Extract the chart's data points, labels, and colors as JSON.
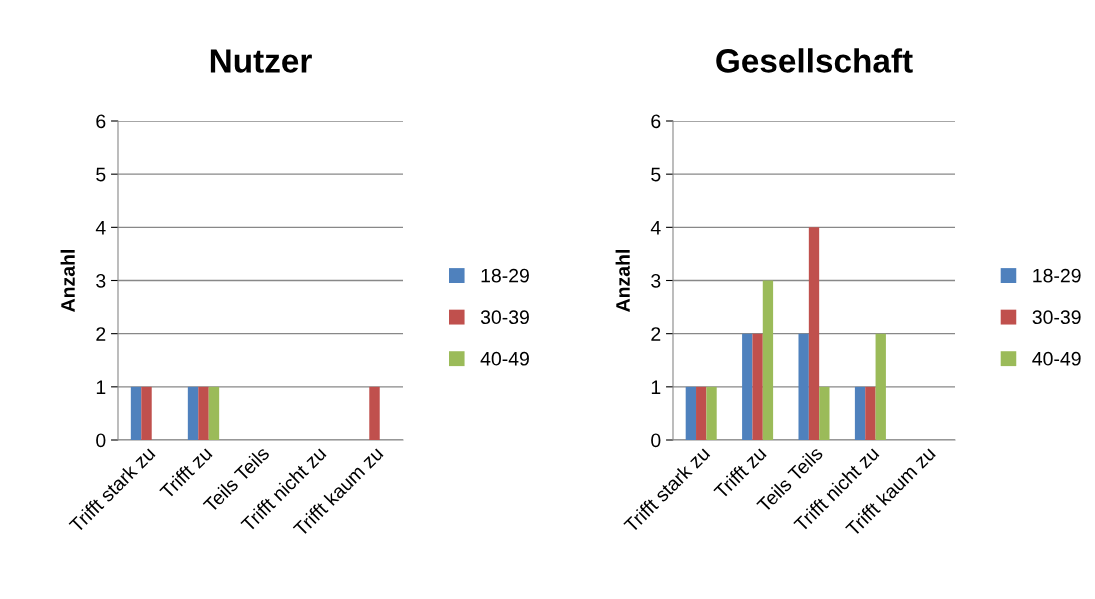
{
  "chart_data": [
    {
      "type": "bar",
      "title": "Nutzer",
      "ylabel": "Anzahl",
      "categories": [
        "Trifft stark zu",
        "Trifft zu",
        "Teils Teils",
        "Trifft nicht zu",
        "Trifft kaum zu"
      ],
      "ylim": [
        0,
        6
      ],
      "yticks": [
        0,
        1,
        2,
        3,
        4,
        5,
        6
      ],
      "grid": "y",
      "legend": "right",
      "series": [
        {
          "name": "18-29",
          "color": "#4f81bd",
          "values": [
            1,
            1,
            0,
            0,
            0
          ]
        },
        {
          "name": "30-39",
          "color": "#c0504d",
          "values": [
            1,
            1,
            0,
            0,
            1
          ]
        },
        {
          "name": "40-49",
          "color": "#9bbb59",
          "values": [
            0,
            1,
            0,
            0,
            0
          ]
        }
      ]
    },
    {
      "type": "bar",
      "title": "Gesellschaft",
      "ylabel": "Anzahl",
      "categories": [
        "Trifft stark zu",
        "Trifft zu",
        "Teils Teils",
        "Trifft nicht zu",
        "Trifft kaum zu"
      ],
      "ylim": [
        0,
        6
      ],
      "yticks": [
        0,
        1,
        2,
        3,
        4,
        5,
        6
      ],
      "grid": "y",
      "legend": "right",
      "series": [
        {
          "name": "18-29",
          "color": "#4f81bd",
          "values": [
            1,
            2,
            2,
            1,
            0
          ]
        },
        {
          "name": "30-39",
          "color": "#c0504d",
          "values": [
            1,
            2,
            4,
            1,
            0
          ]
        },
        {
          "name": "40-49",
          "color": "#9bbb59",
          "values": [
            1,
            3,
            1,
            2,
            0
          ]
        }
      ]
    }
  ]
}
